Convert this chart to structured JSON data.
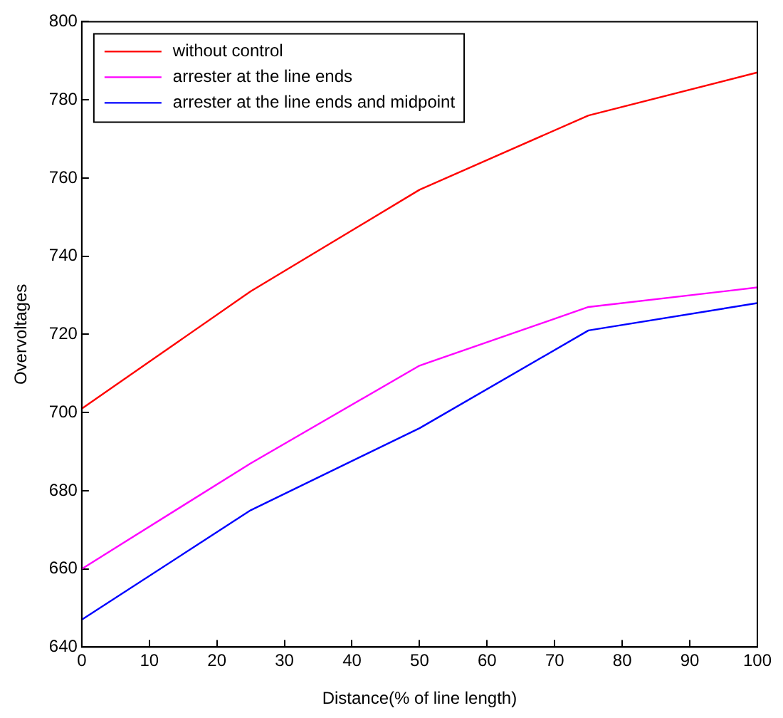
{
  "chart_data": {
    "type": "line",
    "xlabel": "Distance(% of line length)",
    "ylabel": "Overvoltages",
    "x": [
      0,
      25,
      50,
      75,
      100
    ],
    "series": [
      {
        "name": "without control",
        "color": "#ff0000",
        "values": [
          701,
          731,
          757,
          776,
          787
        ]
      },
      {
        "name": "arrester at the line ends",
        "color": "#ff00ff",
        "values": [
          660,
          687,
          712,
          727,
          732
        ]
      },
      {
        "name": "arrester at the line ends and midpoint",
        "color": "#0000ff",
        "values": [
          647,
          675,
          696,
          721,
          728
        ]
      }
    ],
    "xlim": [
      0,
      100
    ],
    "xticks": [
      0,
      10,
      20,
      30,
      40,
      50,
      60,
      70,
      80,
      90,
      100
    ],
    "ylim": [
      640,
      800
    ],
    "yticks": [
      640,
      660,
      680,
      700,
      720,
      740,
      760,
      780,
      800
    ],
    "grid": false,
    "legend": "top left",
    "marker": "none",
    "line_style": "solid"
  }
}
